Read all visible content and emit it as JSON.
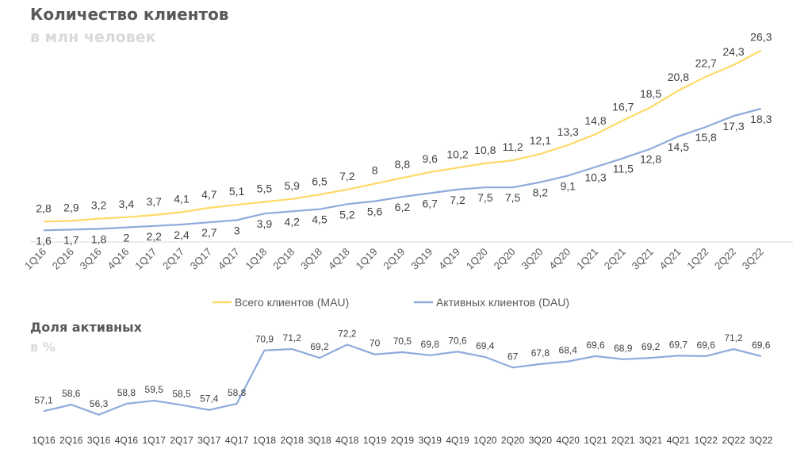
{
  "chart_data": [
    {
      "type": "line",
      "title": "Количество клиентов",
      "subtitle": "в млн человек",
      "categories": [
        "1Q16",
        "2Q16",
        "3Q16",
        "4Q16",
        "1Q17",
        "2Q17",
        "3Q17",
        "4Q17",
        "1Q18",
        "2Q18",
        "3Q18",
        "4Q18",
        "1Q19",
        "2Q19",
        "3Q19",
        "4Q19",
        "1Q20",
        "2Q20",
        "3Q20",
        "4Q20",
        "1Q21",
        "2Q21",
        "3Q21",
        "4Q21",
        "1Q22",
        "2Q22",
        "3Q22"
      ],
      "series": [
        {
          "name": "Всего клиентов (MAU)",
          "color": "#ffd966",
          "values": [
            2.8,
            2.9,
            3.2,
            3.4,
            3.7,
            4.1,
            4.7,
            5.1,
            5.5,
            5.9,
            6.5,
            7.2,
            8,
            8.8,
            9.6,
            10.2,
            10.8,
            11.2,
            12.1,
            13.3,
            14.8,
            16.7,
            18.5,
            20.8,
            22.7,
            24.3,
            26.3
          ],
          "labels": [
            "2,8",
            "2,9",
            "3,2",
            "3,4",
            "3,7",
            "4,1",
            "4,7",
            "5,1",
            "5,5",
            "5,9",
            "6,5",
            "7,2",
            "8",
            "8,8",
            "9,6",
            "10,2",
            "10,8",
            "11,2",
            "12,1",
            "13,3",
            "14,8",
            "16,7",
            "18,5",
            "20,8",
            "22,7",
            "24,3",
            "26,3"
          ]
        },
        {
          "name": "Активных клиентов (DAU)",
          "color": "#8faadc",
          "values": [
            1.6,
            1.7,
            1.8,
            2,
            2.2,
            2.4,
            2.7,
            3,
            3.9,
            4.2,
            4.5,
            5.2,
            5.6,
            6.2,
            6.7,
            7.2,
            7.5,
            7.5,
            8.2,
            9.1,
            10.3,
            11.5,
            12.8,
            14.5,
            15.8,
            17.3,
            18.3
          ],
          "labels": [
            "1,6",
            "1,7",
            "1,8",
            "2",
            "2,2",
            "2,4",
            "2,7",
            "3",
            "3,9",
            "4,2",
            "4,5",
            "5,2",
            "5,6",
            "6,2",
            "6,7",
            "7,2",
            "7,5",
            "7,5",
            "8,2",
            "9,1",
            "10,3",
            "11,5",
            "12,8",
            "14,5",
            "15,8",
            "17,3",
            "18,3"
          ]
        }
      ],
      "ylim": [
        0,
        28
      ],
      "grid": false,
      "legend": "bottom"
    },
    {
      "type": "line",
      "title": "Доля активных",
      "subtitle": "в %",
      "categories": [
        "1Q16",
        "2Q16",
        "3Q16",
        "4Q16",
        "1Q17",
        "2Q17",
        "3Q17",
        "4Q17",
        "1Q18",
        "2Q18",
        "3Q18",
        "4Q18",
        "1Q19",
        "2Q19",
        "3Q19",
        "4Q19",
        "1Q20",
        "2Q20",
        "3Q20",
        "4Q20",
        "1Q21",
        "2Q21",
        "3Q21",
        "4Q21",
        "1Q22",
        "2Q22",
        "3Q22"
      ],
      "series": [
        {
          "color": "#8faadc",
          "values": [
            57.1,
            58.6,
            56.3,
            58.8,
            59.5,
            58.5,
            57.4,
            58.8,
            70.9,
            71.2,
            69.2,
            72.2,
            70,
            70.5,
            69.8,
            70.6,
            69.4,
            67,
            67.8,
            68.4,
            69.6,
            68.9,
            69.2,
            69.7,
            69.6,
            71.2,
            69.6
          ],
          "labels": [
            "57,1",
            "58,6",
            "56,3",
            "58,8",
            "59,5",
            "58,5",
            "57,4",
            "58,8",
            "70,9",
            "71,2",
            "69,2",
            "72,2",
            "70",
            "70,5",
            "69,8",
            "70,6",
            "69,4",
            "67",
            "67,8",
            "68,4",
            "69,6",
            "68,9",
            "69,2",
            "69,7",
            "69,6",
            "71,2",
            "69,6"
          ]
        }
      ],
      "ylim": [
        55,
        73
      ],
      "grid": false,
      "legend": "none"
    }
  ]
}
